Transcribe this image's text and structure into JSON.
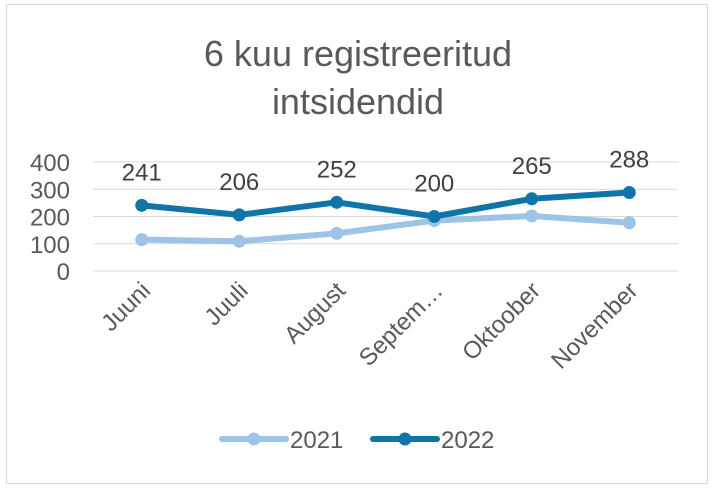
{
  "chart_data": {
    "type": "line",
    "title_lines": [
      "6 kuu registreeritud",
      "intsidendid"
    ],
    "categories": [
      "Juuni",
      "Juuli",
      "August",
      "Septem…",
      "Oktoober",
      "November"
    ],
    "series": [
      {
        "name": "2021",
        "values": [
          115,
          109,
          138,
          185,
          202,
          177
        ],
        "color": "#9dc3e6"
      },
      {
        "name": "2022",
        "values": [
          241,
          206,
          252,
          200,
          265,
          288
        ],
        "color": "#0f75a8"
      }
    ],
    "data_labels_series": "2022",
    "ylim": [
      0,
      400
    ],
    "y_ticks": [
      0,
      100,
      200,
      300,
      400
    ],
    "grid": true,
    "legend_position": "bottom"
  }
}
